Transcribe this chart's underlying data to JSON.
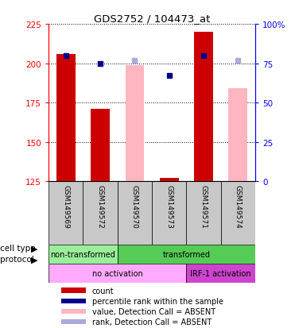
{
  "title": "GDS2752 / 104473_at",
  "samples": [
    "GSM149569",
    "GSM149572",
    "GSM149570",
    "GSM149573",
    "GSM149571",
    "GSM149574"
  ],
  "ylim_left": [
    125,
    225
  ],
  "ylim_right": [
    0,
    100
  ],
  "yticks_left": [
    125,
    150,
    175,
    200,
    225
  ],
  "yticks_right": [
    0,
    25,
    50,
    75,
    100
  ],
  "ytick_labels_right": [
    "0",
    "25",
    "50",
    "75",
    "100%"
  ],
  "plot_data": [
    {
      "x": 0,
      "red_bar": 206,
      "blue_dot": 205,
      "pink_bar": null,
      "lblue_dot": null
    },
    {
      "x": 1,
      "red_bar": 171,
      "blue_dot": 200,
      "pink_bar": null,
      "lblue_dot": null
    },
    {
      "x": 2,
      "red_bar": null,
      "blue_dot": null,
      "pink_bar": 199,
      "lblue_dot": 202
    },
    {
      "x": 3,
      "red_bar": 127,
      "blue_dot": 192,
      "pink_bar": null,
      "lblue_dot": null
    },
    {
      "x": 4,
      "red_bar": 220,
      "blue_dot": 205,
      "pink_bar": null,
      "lblue_dot": null
    },
    {
      "x": 5,
      "red_bar": null,
      "blue_dot": null,
      "pink_bar": 184,
      "lblue_dot": 202
    }
  ],
  "bar_bottom": 125,
  "bar_width": 0.55,
  "red_bar_color": "#CC0000",
  "pink_bar_color": "#FFB6C1",
  "blue_dot_color": "#00008B",
  "light_blue_dot_color": "#AAAADD",
  "grey_box_color": "#C8C8C8",
  "cell_type_spans": [
    {
      "label": "non-transformed",
      "start": 0,
      "end": 2,
      "color": "#99EE99"
    },
    {
      "label": "transformed",
      "start": 2,
      "end": 6,
      "color": "#55CC55"
    }
  ],
  "protocol_spans": [
    {
      "label": "no activation",
      "start": 0,
      "end": 4,
      "color": "#FFAAFF"
    },
    {
      "label": "IRF-1 activation",
      "start": 4,
      "end": 6,
      "color": "#CC44CC"
    }
  ],
  "legend_items": [
    {
      "label": "count",
      "color": "#CC0000"
    },
    {
      "label": "percentile rank within the sample",
      "color": "#00008B"
    },
    {
      "label": "value, Detection Call = ABSENT",
      "color": "#FFB6C1"
    },
    {
      "label": "rank, Detection Call = ABSENT",
      "color": "#AAAADD"
    }
  ]
}
